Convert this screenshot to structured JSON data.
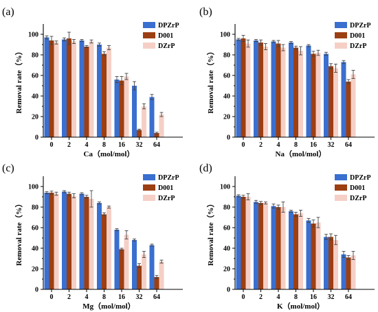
{
  "colors": {
    "DPZrP": "#3a6fd0",
    "D001": "#9c3f12",
    "DZrP": "#f5cfc6"
  },
  "chart_data": [
    {
      "panel": "(a)",
      "type": "bar",
      "categories": [
        "0",
        "2",
        "4",
        "8",
        "16",
        "32",
        "64"
      ],
      "xlabel": "Ca（mol/mol）",
      "ylabel": "Removal rate（%）",
      "ylim": [
        0,
        110
      ],
      "yticks": [
        0,
        20,
        40,
        60,
        80,
        100
      ],
      "legend": "top-right",
      "series": [
        {
          "name": "DPZrP",
          "values": [
            97,
            95,
            94,
            90,
            56,
            50,
            39
          ],
          "err": [
            1.5,
            1.5,
            1,
            1.5,
            3,
            4,
            2.5
          ]
        },
        {
          "name": "D001",
          "values": [
            94,
            96,
            88,
            81,
            55,
            7,
            4
          ],
          "err": [
            4,
            6,
            1,
            2,
            4,
            0.8,
            0.8
          ]
        },
        {
          "name": "DZrP",
          "values": [
            92,
            93,
            93,
            87,
            59,
            30,
            22
          ],
          "err": [
            1.5,
            2,
            1.5,
            2,
            3,
            2.5,
            2
          ]
        }
      ]
    },
    {
      "panel": "(b)",
      "type": "bar",
      "categories": [
        "0",
        "2",
        "4",
        "8",
        "16",
        "32",
        "64"
      ],
      "xlabel": "Na（mol/mol）",
      "ylabel": "Removal rate（%）",
      "ylim": [
        0,
        110
      ],
      "yticks": [
        0,
        20,
        40,
        60,
        80,
        100
      ],
      "legend": "top-right",
      "series": [
        {
          "name": "DPZrP",
          "values": [
            95,
            94,
            93,
            92,
            89,
            81,
            73
          ],
          "err": [
            1,
            1,
            1,
            1,
            1,
            1.5,
            1.5
          ]
        },
        {
          "name": "D001",
          "values": [
            96,
            92,
            91,
            87,
            81,
            69,
            54
          ],
          "err": [
            3,
            2.5,
            3,
            1.5,
            2.5,
            2.5,
            2
          ]
        },
        {
          "name": "DZrP",
          "values": [
            91,
            88,
            87,
            84,
            82,
            67,
            61
          ],
          "err": [
            3.5,
            3,
            3,
            4,
            2.5,
            4,
            4
          ]
        }
      ]
    },
    {
      "panel": "(c)",
      "type": "bar",
      "categories": [
        "0",
        "2",
        "4",
        "8",
        "16",
        "32",
        "64"
      ],
      "xlabel": "Mg（mol/mol）",
      "ylabel": "Removal rate（%）",
      "ylim": [
        0,
        110
      ],
      "yticks": [
        0,
        20,
        40,
        60,
        80,
        100
      ],
      "legend": "top-right",
      "series": [
        {
          "name": "DPZrP",
          "values": [
            94,
            95,
            93,
            84,
            58,
            48,
            43
          ],
          "err": [
            1,
            1,
            1,
            1,
            1,
            1,
            1
          ]
        },
        {
          "name": "D001",
          "values": [
            94,
            93,
            90,
            73,
            39,
            23,
            12
          ],
          "err": [
            1.5,
            1.5,
            1.5,
            1.5,
            1,
            2,
            1.5
          ]
        },
        {
          "name": "DZrP",
          "values": [
            93,
            91,
            88,
            80,
            53,
            34,
            27
          ],
          "err": [
            1.5,
            2,
            8,
            1,
            4,
            3,
            1.5
          ]
        }
      ]
    },
    {
      "panel": "(d)",
      "type": "bar",
      "categories": [
        "0",
        "2",
        "4",
        "8",
        "16",
        "32",
        "64"
      ],
      "xlabel": "K（mol/mol）",
      "ylabel": "Removal rate（%）",
      "ylim": [
        0,
        110
      ],
      "yticks": [
        0,
        20,
        40,
        60,
        80,
        100
      ],
      "legend": "top-right",
      "series": [
        {
          "name": "DPZrP",
          "values": [
            91,
            85,
            81,
            76,
            67,
            51,
            34
          ],
          "err": [
            1,
            1.5,
            2,
            1,
            2,
            2.5,
            3
          ]
        },
        {
          "name": "D001",
          "values": [
            90,
            84,
            80,
            73,
            64,
            51,
            31
          ],
          "err": [
            1.5,
            1.5,
            2,
            2,
            3.5,
            3,
            2
          ]
        },
        {
          "name": "DZrP",
          "values": [
            90,
            84,
            80,
            74,
            65,
            48,
            33
          ],
          "err": [
            3,
            1,
            5,
            3,
            5,
            4.5,
            4
          ]
        }
      ]
    }
  ]
}
